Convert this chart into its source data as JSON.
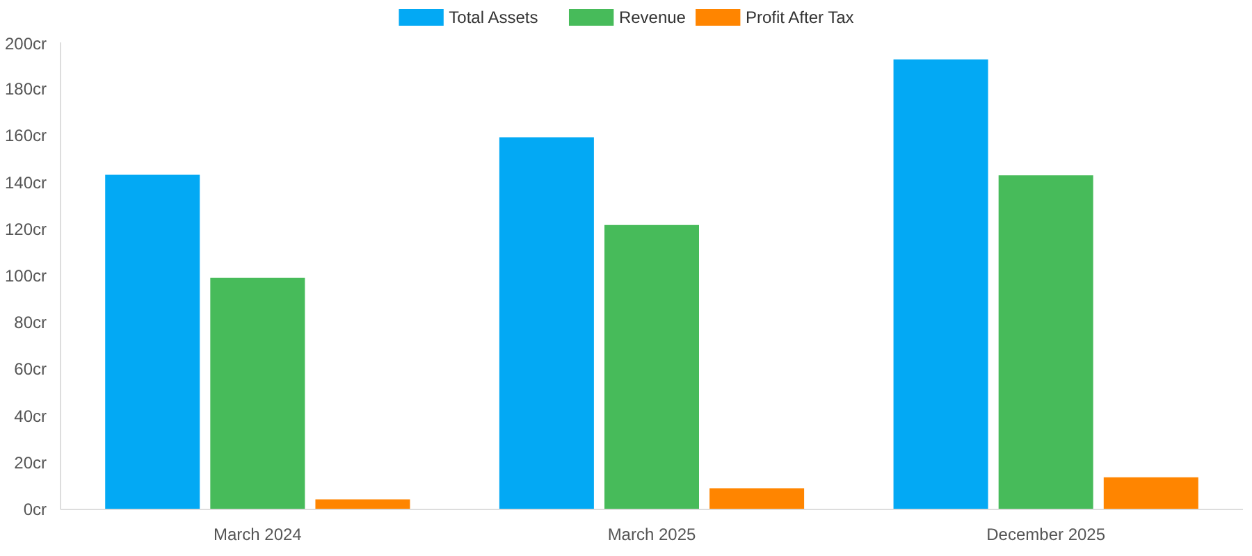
{
  "chart_data": {
    "type": "bar",
    "categories": [
      "March 2024",
      "March 2025",
      "December 2025"
    ],
    "series": [
      {
        "name": "Total Assets",
        "color": "#03a9f4",
        "values": [
          143.3,
          159.4,
          192.7
        ]
      },
      {
        "name": "Revenue",
        "color": "#47bb5a",
        "values": [
          99.2,
          121.8,
          143.1
        ]
      },
      {
        "name": "Profit After Tax",
        "color": "#ff8500",
        "values": [
          4.3,
          9.1,
          13.8
        ]
      }
    ],
    "ylim": [
      0,
      200
    ],
    "yticks": [
      {
        "value": 0,
        "label": "0cr"
      },
      {
        "value": 20,
        "label": "20cr"
      },
      {
        "value": 40,
        "label": "40cr"
      },
      {
        "value": 60,
        "label": "60cr"
      },
      {
        "value": 80,
        "label": "80cr"
      },
      {
        "value": 100,
        "label": "100cr"
      },
      {
        "value": 120,
        "label": "120cr"
      },
      {
        "value": 140,
        "label": "140cr"
      },
      {
        "value": 160,
        "label": "160cr"
      },
      {
        "value": 180,
        "label": "180cr"
      },
      {
        "value": 200,
        "label": "200cr"
      }
    ],
    "grid": false,
    "legend": "top"
  }
}
